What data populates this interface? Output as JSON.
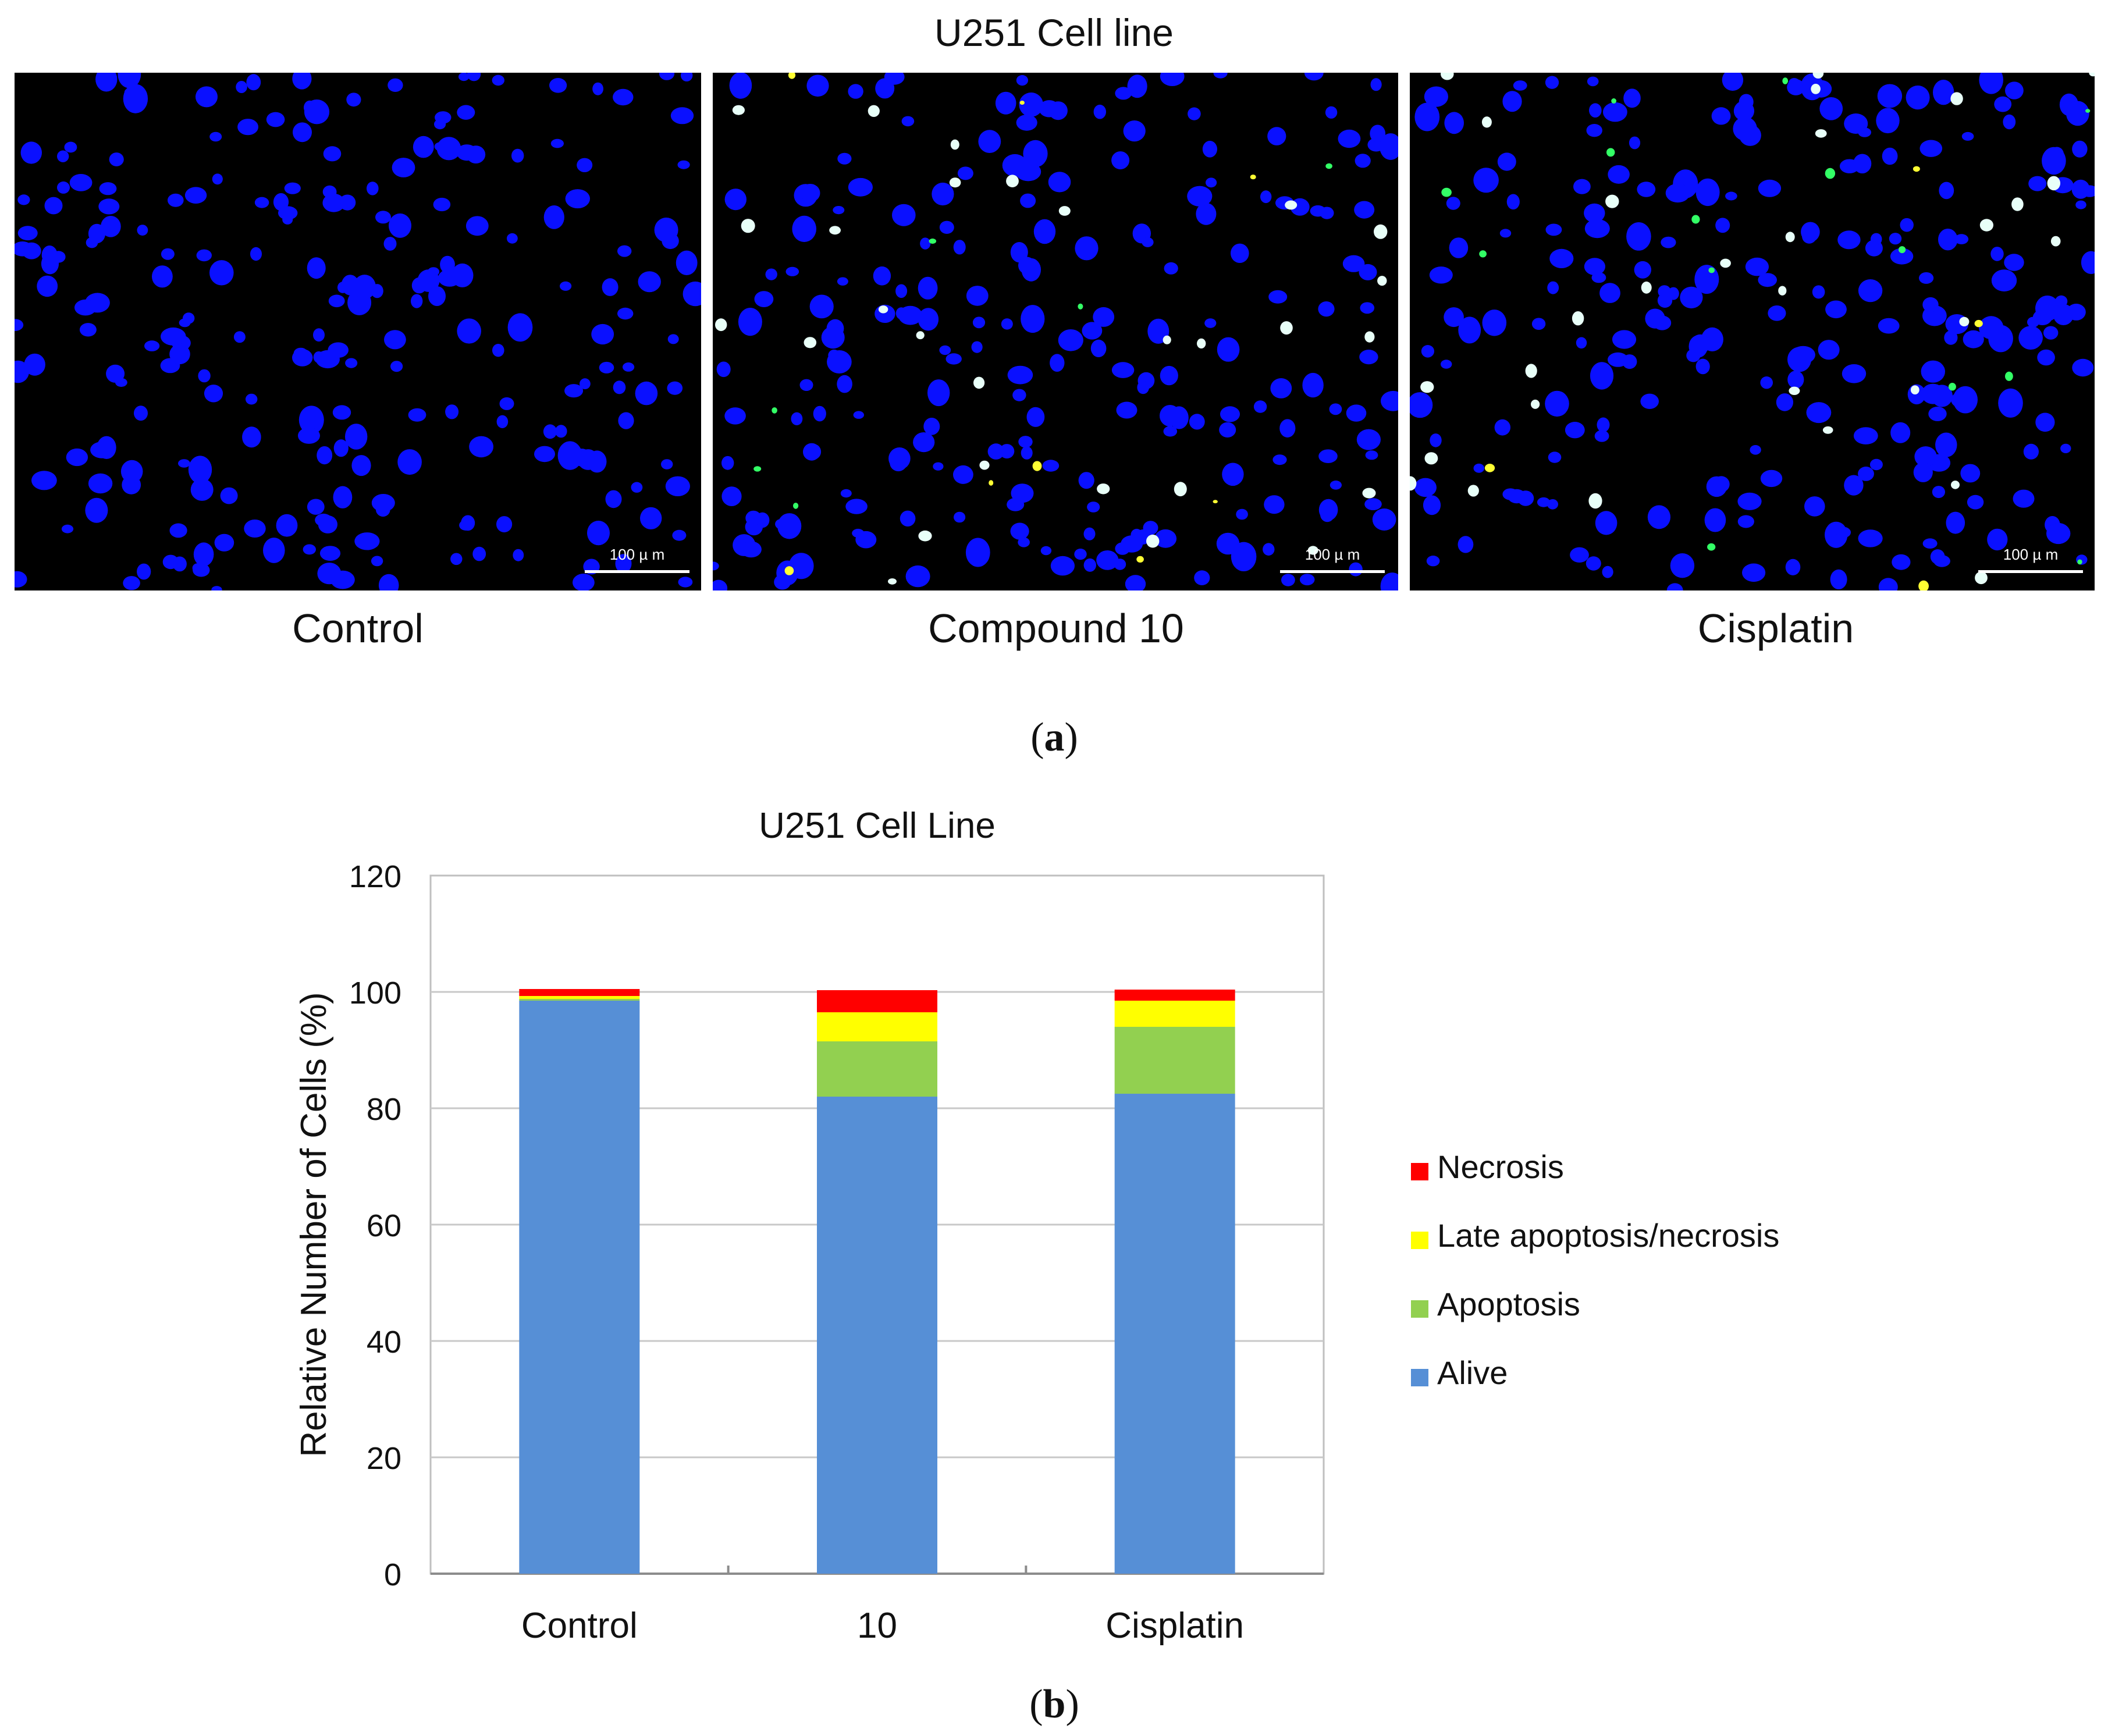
{
  "panel_a": {
    "title": "U251 Cell line",
    "panels": [
      {
        "label": "Control",
        "scale_bar": "100 µ m"
      },
      {
        "label": "Compound 10",
        "scale_bar": "100 µ m"
      },
      {
        "label": "Cisplatin",
        "scale_bar": "100 µ m"
      }
    ],
    "sublabel": {
      "open": "(",
      "letter": "a",
      "close": ")"
    }
  },
  "panel_b": {
    "sublabel": {
      "open": "(",
      "letter": "b",
      "close": ")"
    }
  },
  "colors": {
    "nucleus": "#0a10ff",
    "apoptosis_cell": "#33ff66",
    "late_cell": "#ffff33",
    "bright_cell": "#e8fff8",
    "alive": "#568fd6",
    "apoptosis": "#92d050",
    "late": "#ffff00",
    "necrosis": "#ff0000"
  },
  "chart_data": {
    "type": "bar",
    "stacked": true,
    "title": "U251 Cell Line",
    "xlabel": "",
    "ylabel": "Relative Number of Cells (%)",
    "categories": [
      "Control",
      "10",
      "Cisplatin"
    ],
    "ylim": [
      0,
      120
    ],
    "yticks": [
      0,
      20,
      40,
      60,
      80,
      100,
      120
    ],
    "grid": true,
    "legend_position": "right",
    "series": [
      {
        "name": "Alive",
        "color": "#568fd6",
        "values": [
          98.5,
          82.0,
          82.5
        ]
      },
      {
        "name": "Apoptosis",
        "color": "#92d050",
        "values": [
          0.3,
          9.5,
          11.5
        ]
      },
      {
        "name": "Late apoptosis/necrosis",
        "color": "#ffff00",
        "values": [
          0.5,
          5.0,
          4.5
        ]
      },
      {
        "name": "Necrosis",
        "color": "#ff0000",
        "values": [
          1.2,
          3.8,
          1.9
        ]
      }
    ],
    "legend_order": [
      "Necrosis",
      "Late apoptosis/necrosis",
      "Apoptosis",
      "Alive"
    ]
  }
}
